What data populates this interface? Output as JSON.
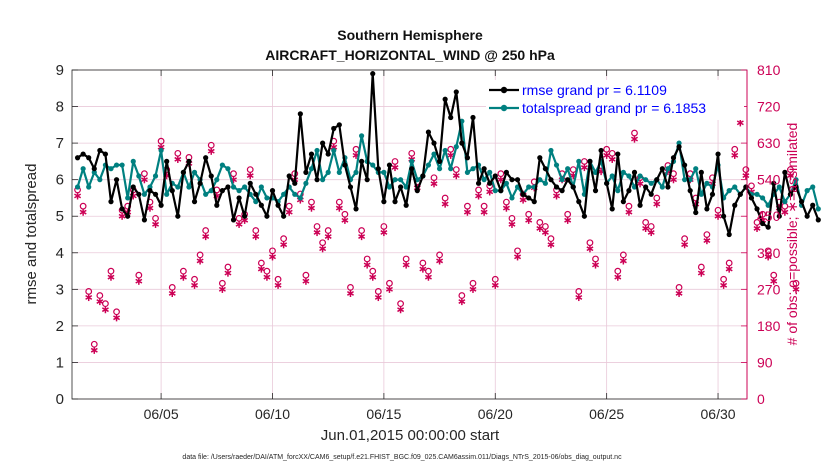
{
  "chart_data": {
    "type": "line",
    "title": "Southern Hemisphere",
    "subtitle": "AIRCRAFT_HORIZONTAL_WIND @ 250 hPa",
    "xlabel": "Jun.01,2015 00:00:00 start",
    "ylabel_left": "rmse and totalspread",
    "ylabel_right": "# of obs: o=possible; ∗=assimilated",
    "footnote": "data file: /Users/raeder/DAI/ATM_forcXX/CAM6_setup/f.e21.FHIST_BGC.f09_025.CAM6assim.011/Diags_NTrS_2015-06/obs_diag_output.nc",
    "xlim": [
      1,
      31.3
    ],
    "ylim_left": [
      0,
      9
    ],
    "ylim_right": [
      0,
      810
    ],
    "x_ticks": [
      5,
      10,
      15,
      20,
      25,
      30
    ],
    "x_tick_labels": [
      "06/05",
      "06/10",
      "06/15",
      "06/20",
      "06/25",
      "06/30"
    ],
    "y_left_ticks": [
      "0",
      "1",
      "2",
      "3",
      "4",
      "5",
      "6",
      "7",
      "8",
      "9"
    ],
    "y_right_ticks": [
      "0",
      "90",
      "180",
      "270",
      "360",
      "450",
      "540",
      "630",
      "720",
      "810"
    ],
    "colors": {
      "rmse": "#000000",
      "spread": "#008080",
      "obs": "#cc0055",
      "right_axis": "#cc0055",
      "legend_text": "#0000ff",
      "grid": "#e9c9d9"
    },
    "x_start": 1.25,
    "x_step": 0.25,
    "series": [
      {
        "name": "rmse grand pr = 6.1109",
        "color": "#000000",
        "marker": "dot",
        "values": [
          6.6,
          6.7,
          6.6,
          6.3,
          6.8,
          6.7,
          5.4,
          6.0,
          5.2,
          5.0,
          5.8,
          5.6,
          4.9,
          5.7,
          5.6,
          5.3,
          6.5,
          5.7,
          5.0,
          6.2,
          6.5,
          5.4,
          5.9,
          6.6,
          6.1,
          5.3,
          5.7,
          5.8,
          4.9,
          5.5,
          5.0,
          5.9,
          5.6,
          5.3,
          5.0,
          5.7,
          5.3,
          5.0,
          6.1,
          5.9,
          7.8,
          6.2,
          6.7,
          6.0,
          7.0,
          6.7,
          7.4,
          7.5,
          6.4,
          5.8,
          5.2,
          6.5,
          6.0,
          8.9,
          6.3,
          5.4,
          6.4,
          5.4,
          5.8,
          5.3,
          6.3,
          5.7,
          6.1,
          7.3,
          7.0,
          6.5,
          8.2,
          7.7,
          8.4,
          7.0,
          6.6,
          7.7,
          5.9,
          6.3,
          5.9,
          6.1,
          5.7,
          6.2,
          6.0,
          6.0,
          5.6,
          5.5,
          5.4,
          6.6,
          6.3,
          6.0,
          5.8,
          5.7,
          6.0,
          5.8,
          5.4,
          5.0,
          6.5,
          5.7,
          6.8,
          5.9,
          5.2,
          6.7,
          5.4,
          5.7,
          6.2,
          5.3,
          5.8,
          5.6,
          6.0,
          6.3,
          5.8,
          6.6,
          6.9,
          6.4,
          5.7,
          5.1,
          6.2,
          5.2,
          5.6,
          6.7,
          5.0,
          4.5,
          5.3,
          5.6,
          5.8,
          5.5,
          5.2,
          4.8,
          4.7,
          5.9,
          5.0,
          6.2,
          5.6,
          5.8,
          5.4,
          5.0,
          5.3,
          4.9
        ]
      },
      {
        "name": "totalspread grand pr = 6.1853",
        "color": "#008080",
        "marker": "dot",
        "values": [
          5.8,
          6.3,
          5.8,
          6.2,
          6.0,
          6.4,
          6.3,
          6.4,
          6.4,
          5.5,
          6.5,
          6.1,
          5.6,
          5.8,
          6.1,
          6.8,
          5.6,
          5.9,
          5.8,
          6.2,
          5.8,
          6.2,
          6.0,
          5.6,
          5.7,
          6.0,
          6.4,
          6.3,
          5.8,
          5.7,
          5.8,
          5.6,
          5.4,
          5.8,
          5.5,
          5.5,
          5.4,
          5.6,
          5.8,
          5.6,
          5.5,
          5.9,
          6.3,
          6.8,
          6.0,
          6.2,
          6.8,
          6.2,
          6.6,
          6.0,
          6.2,
          7.2,
          6.5,
          6.4,
          6.2,
          6.2,
          5.8,
          6.0,
          6.0,
          5.8,
          6.5,
          6.0,
          6.1,
          6.4,
          6.7,
          6.3,
          6.8,
          6.3,
          6.9,
          7.6,
          6.2,
          6.3,
          6.4,
          6.0,
          6.2,
          5.7,
          5.7,
          5.9,
          5.5,
          5.8,
          5.6,
          5.8,
          5.8,
          6.0,
          5.9,
          6.8,
          6.4,
          6.0,
          6.3,
          5.8,
          6.5,
          5.6,
          6.5,
          6.2,
          6.5,
          5.9,
          6.1,
          5.7,
          6.2,
          6.1,
          5.8,
          6.1,
          6.0,
          5.9,
          6.0,
          5.8,
          6.3,
          6.5,
          7.0,
          6.0,
          6.0,
          6.3,
          5.6,
          5.9,
          5.8,
          6.4,
          5.5,
          5.7,
          5.8,
          5.6,
          5.8,
          5.6,
          5.6,
          5.5,
          5.3,
          5.6,
          5.8,
          5.4,
          5.6,
          6.0,
          5.3,
          5.7,
          5.8,
          5.2
        ]
      }
    ],
    "obs_assimilated": [
      500,
      460,
      250,
      120,
      240,
      220,
      300,
      200,
      450,
      460,
      500,
      290,
      540,
      470,
      430,
      620,
      550,
      260,
      590,
      300,
      580,
      280,
      340,
      400,
      610,
      500,
      270,
      310,
      540,
      430,
      440,
      550,
      400,
      320,
      300,
      350,
      280,
      380,
      460,
      540,
      490,
      290,
      470,
      410,
      370,
      400,
      620,
      470,
      440,
      260,
      600,
      400,
      330,
      300,
      250,
      410,
      270,
      570,
      220,
      330,
      590,
      520,
      320,
      300,
      530,
      340,
      480,
      600,
      550,
      240,
      460,
      270,
      500,
      460,
      510,
      280,
      540,
      470,
      430,
      350,
      490,
      440,
      520,
      420,
      410,
      380,
      500,
      540,
      440,
      550,
      250,
      570,
      370,
      330,
      560,
      600,
      590,
      300,
      340,
      460,
      640,
      530,
      420,
      410,
      480,
      700,
      560,
      540,
      260,
      380,
      540,
      480,
      310,
      390,
      530,
      450,
      280,
      320,
      600,
      680,
      550,
      510,
      420,
      440,
      350,
      290,
      470,
      460,
      550,
      270
    ]
  }
}
